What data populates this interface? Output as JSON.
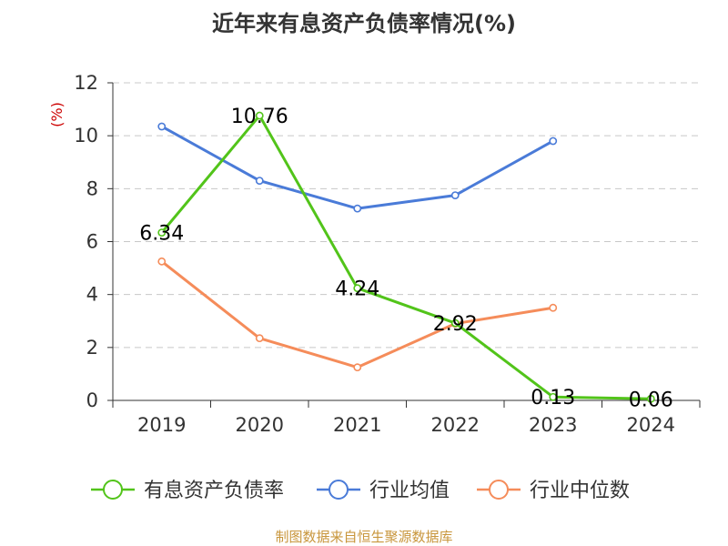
{
  "chart_data": {
    "type": "line",
    "title": "近年来有息资产负债率情况(%)",
    "ylabel": "(%)",
    "xlabel": "",
    "categories": [
      "2019",
      "2020",
      "2021",
      "2022",
      "2023",
      "2024"
    ],
    "ylim": [
      0,
      12
    ],
    "yticks": [
      "0",
      "2",
      "4",
      "6",
      "8",
      "10",
      "12"
    ],
    "grid": true,
    "legend_position": "bottom",
    "series": [
      {
        "name": "有息资产负债率",
        "color": "#52c41a",
        "values": [
          6.34,
          10.76,
          4.24,
          2.92,
          0.13,
          0.06
        ],
        "labels": [
          "6.34",
          "10.76",
          "4.24",
          "2.92",
          "0.13",
          "0.06"
        ]
      },
      {
        "name": "行业均值",
        "color": "#4a7bd8",
        "values": [
          10.35,
          8.3,
          7.25,
          7.75,
          9.8,
          null
        ]
      },
      {
        "name": "行业中位数",
        "color": "#f58c5a",
        "values": [
          5.25,
          2.35,
          1.25,
          2.9,
          3.5,
          null
        ]
      }
    ]
  },
  "source_note": "制图数据来自恒生聚源数据库"
}
